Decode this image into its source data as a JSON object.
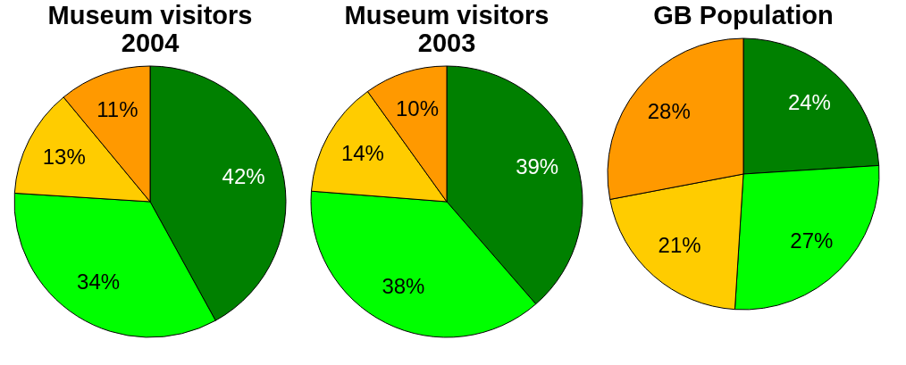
{
  "chart_data": [
    {
      "type": "pie",
      "title": "Museum visitors 2004",
      "categories": [
        null,
        null,
        null,
        null
      ],
      "values": [
        42,
        34,
        13,
        11
      ],
      "colors": [
        "#008000",
        "#00ff00",
        "#ffcc00",
        "#ff9900"
      ],
      "value_labels": [
        "42%",
        "34%",
        "13%",
        "11%"
      ]
    },
    {
      "type": "pie",
      "title": "Museum visitors 2003",
      "categories": [
        null,
        null,
        null,
        null
      ],
      "values": [
        39,
        38,
        14,
        10
      ],
      "colors": [
        "#008000",
        "#00ff00",
        "#ffcc00",
        "#ff9900"
      ],
      "value_labels": [
        "39%",
        "38%",
        "14%",
        "10%"
      ]
    },
    {
      "type": "pie",
      "title": "GB Population",
      "categories": [
        null,
        null,
        null,
        null
      ],
      "values": [
        24,
        27,
        21,
        28
      ],
      "colors": [
        "#008000",
        "#00ff00",
        "#ffcc00",
        "#ff9900"
      ],
      "value_labels": [
        "24%",
        "27%",
        "21%",
        "28%"
      ]
    }
  ]
}
